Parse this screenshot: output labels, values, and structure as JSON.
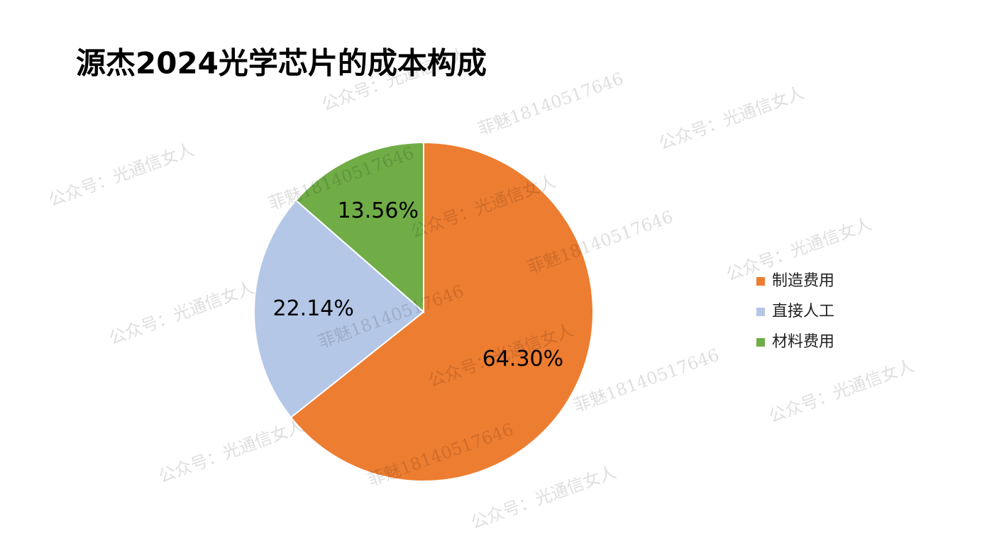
{
  "chart_data": {
    "type": "pie",
    "title": "源杰2024光学芯片的成本构成",
    "categories": [
      "制造费用",
      "直接人工",
      "材料费用"
    ],
    "values": [
      64.3,
      22.14,
      13.56
    ],
    "value_labels": [
      "64.30%",
      "22.14%",
      "13.56%"
    ],
    "colors": [
      "#ed7d31",
      "#b4c7e7",
      "#70ad47"
    ],
    "legend": "right",
    "watermarks": [
      "公众号：光通信女人",
      "菲魅18140517646"
    ]
  }
}
